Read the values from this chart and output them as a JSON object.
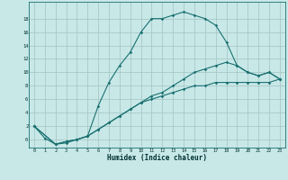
{
  "xlabel": "Humidex (Indice chaleur)",
  "x_ticks": [
    0,
    1,
    2,
    3,
    4,
    5,
    6,
    7,
    8,
    9,
    10,
    11,
    12,
    13,
    14,
    15,
    16,
    17,
    18,
    19,
    20,
    21,
    22,
    23
  ],
  "y_ticks": [
    0,
    2,
    4,
    6,
    8,
    10,
    12,
    14,
    16,
    18
  ],
  "ylim": [
    -1.2,
    20.5
  ],
  "xlim": [
    -0.5,
    23.5
  ],
  "background_color": "#c8e8e8",
  "grid_color": "#a8c8c8",
  "line_color": "#1a7070",
  "line1_x": [
    0,
    1,
    2,
    3,
    4,
    5,
    6,
    7,
    8,
    9,
    10,
    11,
    12,
    13,
    14,
    15,
    16,
    17,
    18,
    19,
    20,
    21,
    22,
    23
  ],
  "line1_y": [
    2,
    0.2,
    -0.7,
    -0.5,
    0,
    0.5,
    5,
    8.5,
    11,
    13,
    16,
    18,
    18,
    18.5,
    19,
    18.5,
    18,
    17,
    14.5,
    11,
    10,
    9.5,
    10,
    9
  ],
  "line2_x": [
    0,
    2,
    3,
    4,
    5,
    6,
    7,
    8,
    9,
    10,
    11,
    12,
    13,
    14,
    15,
    16,
    17,
    18,
    19,
    20,
    21,
    22,
    23
  ],
  "line2_y": [
    2,
    -0.7,
    -0.3,
    0,
    0.5,
    1.5,
    2.5,
    3.5,
    4.5,
    5.5,
    6.5,
    7.0,
    8.0,
    9.0,
    10.0,
    10.5,
    11,
    11.5,
    11,
    10,
    9.5,
    10,
    9
  ],
  "line3_x": [
    0,
    2,
    3,
    4,
    5,
    6,
    7,
    8,
    9,
    10,
    11,
    12,
    13,
    14,
    15,
    16,
    17,
    18,
    19,
    20,
    21,
    22,
    23
  ],
  "line3_y": [
    2,
    -0.7,
    -0.3,
    0,
    0.5,
    1.5,
    2.5,
    3.5,
    4.5,
    5.5,
    6.0,
    6.5,
    7.0,
    7.5,
    8.0,
    8.0,
    8.5,
    8.5,
    8.5,
    8.5,
    8.5,
    8.5,
    9
  ]
}
